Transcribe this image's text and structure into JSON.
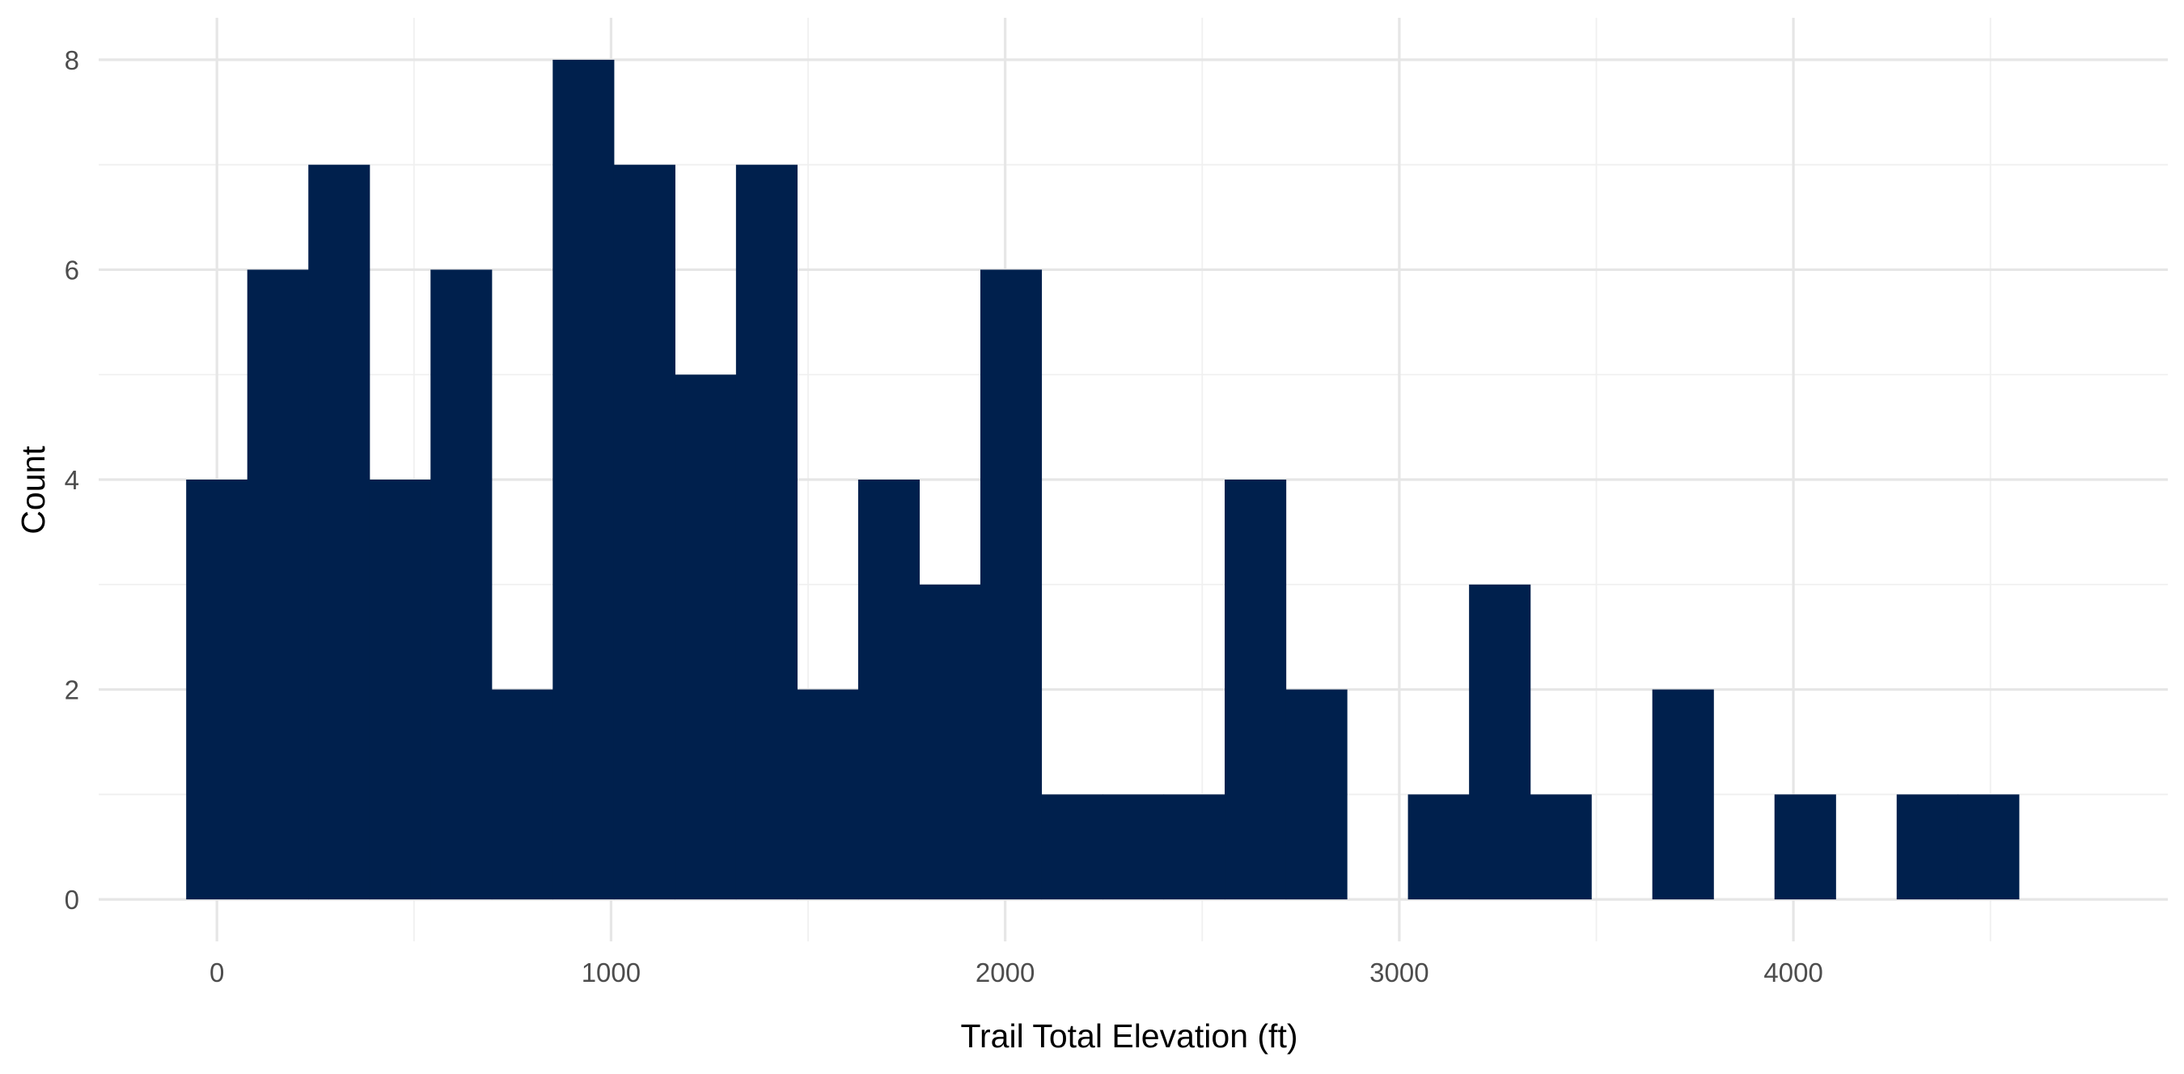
{
  "chart_data": {
    "type": "bar",
    "subtype": "histogram",
    "xlabel": "Trail Total Elevation (ft)",
    "ylabel": "Count",
    "bin_width": 155,
    "bin_start": -78,
    "values": [
      4,
      6,
      7,
      4,
      6,
      2,
      8,
      7,
      5,
      7,
      2,
      4,
      3,
      6,
      1,
      1,
      1,
      4,
      2,
      0,
      1,
      3,
      1,
      0,
      2,
      0,
      1,
      0,
      1,
      1
    ],
    "xlim": [
      -300,
      4950
    ],
    "ylim": [
      -0.4,
      8.4
    ],
    "x_ticks": [
      0,
      1000,
      2000,
      3000,
      4000
    ],
    "x_tick_labels": [
      "0",
      "1000",
      "2000",
      "3000",
      "4000"
    ],
    "y_ticks": [
      0,
      2,
      4,
      6,
      8
    ],
    "y_tick_labels": [
      "0",
      "2",
      "4",
      "6",
      "8"
    ],
    "bar_color": "#00204D",
    "grid": true,
    "legend": "none"
  }
}
